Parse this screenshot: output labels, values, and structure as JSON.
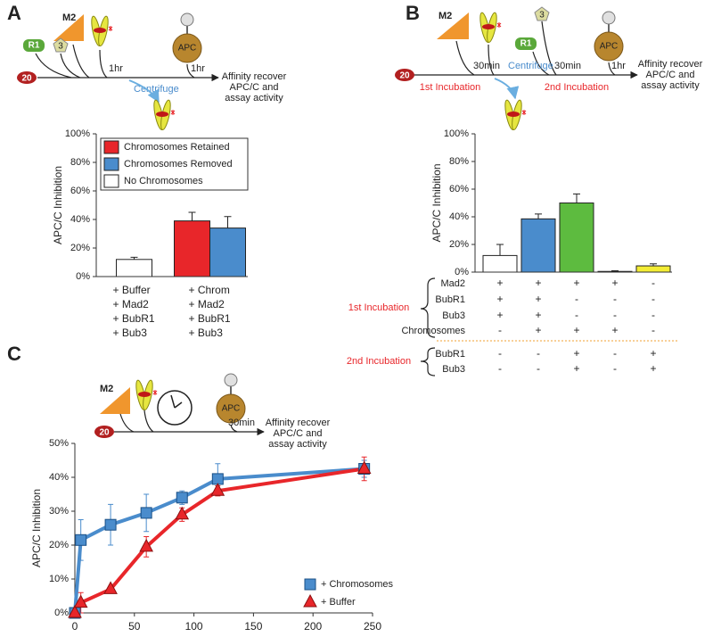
{
  "panel_labels": [
    "A",
    "B",
    "C"
  ],
  "diagrams": [
    {
      "m2": "M2",
      "r1": "R1",
      "bub3": "3",
      "apc": "APC",
      "start": "20",
      "steps": [
        "1hr",
        "1hr"
      ],
      "centrifuge": "Centrifuge",
      "result": [
        "Affinity recover",
        "APC/C and",
        "assay activity"
      ]
    },
    {
      "m2": "M2",
      "r1": "R1",
      "bub3": "3",
      "apc": "APC",
      "start": "20",
      "steps": [
        "30min",
        "30min",
        "1hr"
      ],
      "centrifuge": "Centrifuge",
      "incubations": [
        "1st Incubation",
        "2nd Incubation"
      ],
      "result": [
        "Affinity recover",
        "APC/C and",
        "assay activity"
      ]
    },
    {
      "m2": "M2",
      "apc": "APC",
      "start": "20",
      "steps": [
        "30min"
      ],
      "result": [
        "Affinity recover",
        "APC/C and",
        "assay activity"
      ]
    }
  ],
  "chart_data": [
    {
      "type": "grouped-bar",
      "ylabel": "APC/C Inhibition",
      "categories": [
        [
          "+ Buffer",
          "+ Mad2",
          "+ BubR1",
          "+ Bub3"
        ],
        [
          "+ Chrom",
          "+ Mad2",
          "+ BubR1",
          "+ Bub3"
        ]
      ],
      "series": [
        {
          "name": "Chromosomes Retained",
          "color": "#e8262a",
          "values": [
            null,
            39
          ],
          "errors": [
            null,
            6
          ]
        },
        {
          "name": "Chromosomes Removed",
          "color": "#4a8ccc",
          "values": [
            null,
            34
          ],
          "errors": [
            null,
            8
          ]
        },
        {
          "name": "No Chromosomes",
          "color": "#ffffff",
          "values": [
            12,
            null
          ],
          "errors": [
            1.5,
            null
          ]
        }
      ],
      "ylim": [
        0,
        100
      ],
      "yticks": [
        {
          "value": 0,
          "label": "0%"
        },
        {
          "value": 20,
          "label": "20%"
        },
        {
          "value": 40,
          "label": "40%"
        },
        {
          "value": 60,
          "label": "60%"
        },
        {
          "value": 80,
          "label": "80%"
        },
        {
          "value": 100,
          "label": "100%"
        }
      ],
      "legend": "top-left"
    },
    {
      "type": "bar",
      "ylabel": "APC/C Inhibition",
      "values": [
        12,
        38.5,
        50,
        0.5,
        4.5
      ],
      "errors": [
        8,
        3.5,
        6.5,
        0.5,
        1.5
      ],
      "colors": [
        "#ffffff",
        "#4a8ccc",
        "#5dbb3f",
        "#ffffff",
        "#f3ec34"
      ],
      "ylim": [
        0,
        100
      ],
      "yticks": [
        {
          "value": 0,
          "label": "0%"
        },
        {
          "value": 20,
          "label": "20%"
        },
        {
          "value": 40,
          "label": "40%"
        },
        {
          "value": 60,
          "label": "60%"
        },
        {
          "value": 80,
          "label": "80%"
        },
        {
          "value": 100,
          "label": "100%"
        }
      ],
      "conditions": [
        {
          "name": "1st Incubation",
          "rows": [
            {
              "name": "Mad2",
              "cells": [
                "+",
                "+",
                "+",
                "+",
                "-"
              ]
            },
            {
              "name": "BubR1",
              "cells": [
                "+",
                "+",
                "-",
                "-",
                "-"
              ]
            },
            {
              "name": "Bub3",
              "cells": [
                "+",
                "+",
                "-",
                "-",
                "-"
              ]
            },
            {
              "name": "Chromosomes",
              "cells": [
                "-",
                "+",
                "+",
                "+",
                "-"
              ]
            }
          ]
        },
        {
          "name": "2nd Incubation",
          "rows": [
            {
              "name": "BubR1",
              "cells": [
                "-",
                "-",
                "+",
                "-",
                "+"
              ]
            },
            {
              "name": "Bub3",
              "cells": [
                "-",
                "-",
                "+",
                "-",
                "+"
              ]
            }
          ]
        }
      ]
    },
    {
      "type": "line",
      "ylabel": "APC/C Inhibition",
      "x": [
        0,
        5,
        30,
        60,
        90,
        120,
        243
      ],
      "series": [
        {
          "name": "+ Chromosomes",
          "color": "#4a8ccc",
          "marker": "square",
          "values": [
            0,
            21.5,
            26,
            29.5,
            34,
            39.5,
            42.5
          ],
          "errors": [
            0,
            6,
            6,
            5.5,
            2,
            4.5,
            2.5
          ]
        },
        {
          "name": "+ Buffer",
          "color": "#e8262a",
          "marker": "triangle",
          "values": [
            0,
            3,
            7,
            19.5,
            29,
            36,
            42.5
          ],
          "errors": [
            0,
            3,
            0.5,
            3,
            2,
            1.5,
            3.5
          ]
        }
      ],
      "xlim": [
        0,
        250
      ],
      "xticks": [
        0,
        50,
        100,
        150,
        200,
        250
      ],
      "ylim": [
        0,
        50
      ],
      "yticks": [
        {
          "value": 0,
          "label": "0%"
        },
        {
          "value": 10,
          "label": "10%"
        },
        {
          "value": 20,
          "label": "20%"
        },
        {
          "value": 30,
          "label": "30%"
        },
        {
          "value": 40,
          "label": "40%"
        },
        {
          "value": 50,
          "label": "50%"
        }
      ],
      "legend": "bottom-right"
    }
  ]
}
